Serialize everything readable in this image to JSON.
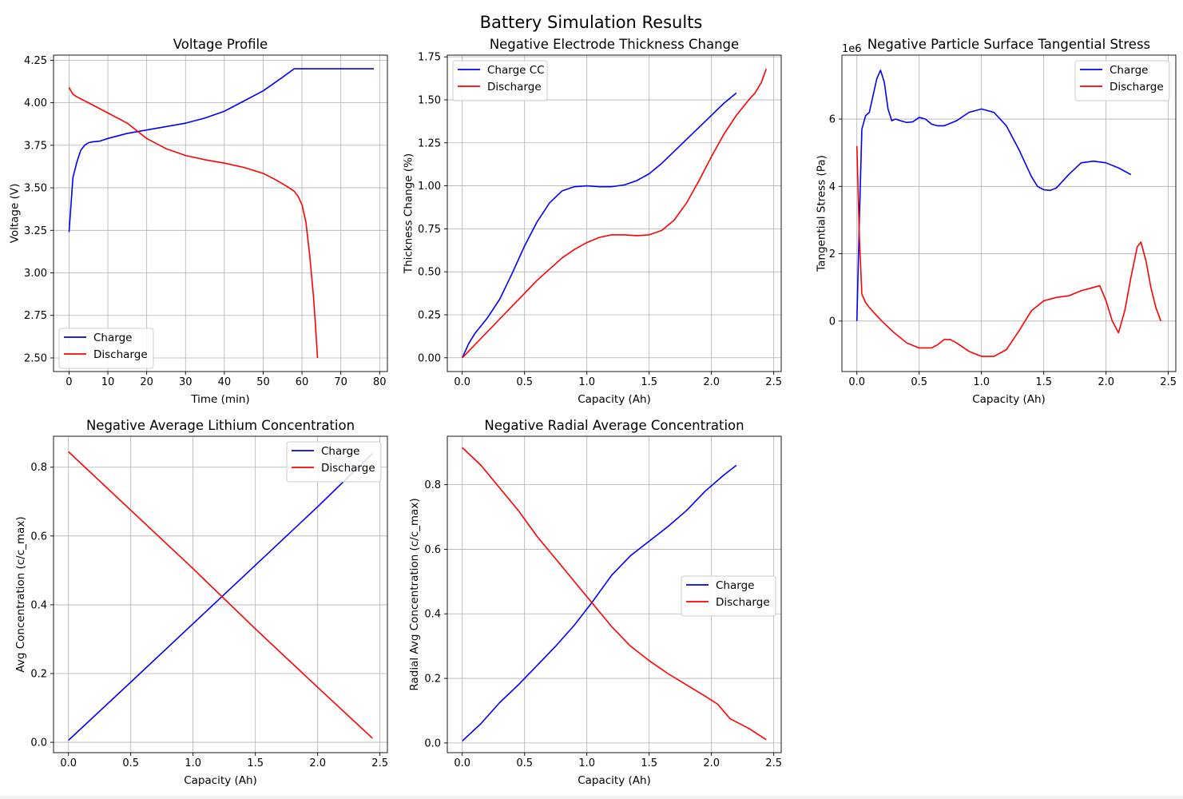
{
  "suptitle": "Battery Simulation Results",
  "colors": {
    "charge": "#0000ff",
    "discharge": "#ff0000",
    "grid": "#b0b0b0",
    "axis": "#000000"
  },
  "chart_data": [
    {
      "type": "line",
      "title": "Voltage Profile",
      "xlabel": "Time (min)",
      "ylabel": "Voltage (V)",
      "xlim": [
        -4,
        82
      ],
      "ylim": [
        2.42,
        4.28
      ],
      "xticks": [
        0,
        10,
        20,
        30,
        40,
        50,
        60,
        70,
        80
      ],
      "xtick_labels": [
        "0",
        "10",
        "20",
        "30",
        "40",
        "50",
        "60",
        "70",
        "80"
      ],
      "yticks": [
        2.5,
        2.75,
        3.0,
        3.25,
        3.5,
        3.75,
        4.0,
        4.25
      ],
      "ytick_labels": [
        "2.50",
        "2.75",
        "3.00",
        "3.25",
        "3.50",
        "3.75",
        "4.00",
        "4.25"
      ],
      "grid": true,
      "legend": "lower-left",
      "series": [
        {
          "name": "Charge",
          "color": "#0000ff",
          "x": [
            0,
            1,
            2,
            3,
            4,
            5,
            6,
            8,
            10,
            15,
            20,
            25,
            30,
            35,
            40,
            45,
            50,
            55,
            58,
            60,
            65,
            70,
            75,
            78.5
          ],
          "y": [
            3.24,
            3.56,
            3.65,
            3.72,
            3.75,
            3.765,
            3.77,
            3.775,
            3.79,
            3.82,
            3.84,
            3.86,
            3.88,
            3.91,
            3.95,
            4.01,
            4.07,
            4.15,
            4.2,
            4.2,
            4.2,
            4.2,
            4.2,
            4.2
          ]
        },
        {
          "name": "Discharge",
          "color": "#ff0000",
          "x": [
            0,
            0.5,
            1,
            2,
            5,
            10,
            15,
            20,
            25,
            30,
            35,
            40,
            45,
            50,
            53,
            56,
            58,
            59,
            60,
            61,
            62,
            63,
            63.5,
            64
          ],
          "y": [
            4.09,
            4.07,
            4.05,
            4.035,
            4.0,
            3.94,
            3.88,
            3.79,
            3.73,
            3.69,
            3.665,
            3.645,
            3.62,
            3.585,
            3.55,
            3.51,
            3.48,
            3.45,
            3.4,
            3.3,
            3.1,
            2.85,
            2.68,
            2.5
          ]
        }
      ]
    },
    {
      "type": "line",
      "title": "Negative Electrode Thickness Change",
      "xlabel": "Capacity (Ah)",
      "ylabel": "Thickness Change (%)",
      "xlim": [
        -0.12,
        2.56
      ],
      "ylim": [
        -0.08,
        1.76
      ],
      "xticks": [
        0,
        0.5,
        1.0,
        1.5,
        2.0,
        2.5
      ],
      "xtick_labels": [
        "0.0",
        "0.5",
        "1.0",
        "1.5",
        "2.0",
        "2.5"
      ],
      "yticks": [
        0,
        0.25,
        0.5,
        0.75,
        1.0,
        1.25,
        1.5,
        1.75
      ],
      "ytick_labels": [
        "0.00",
        "0.25",
        "0.50",
        "0.75",
        "1.00",
        "1.25",
        "1.50",
        "1.75"
      ],
      "grid": true,
      "legend": "upper-left",
      "series": [
        {
          "name": "Charge CC",
          "color": "#0000ff",
          "x": [
            0,
            0.05,
            0.1,
            0.2,
            0.3,
            0.4,
            0.5,
            0.6,
            0.7,
            0.8,
            0.9,
            1.0,
            1.1,
            1.2,
            1.3,
            1.4,
            1.5,
            1.6,
            1.7,
            1.8,
            1.9,
            2.0,
            2.1,
            2.2
          ],
          "y": [
            0,
            0.08,
            0.14,
            0.23,
            0.34,
            0.49,
            0.65,
            0.79,
            0.9,
            0.97,
            0.995,
            1.0,
            0.995,
            0.995,
            1.005,
            1.03,
            1.07,
            1.13,
            1.2,
            1.27,
            1.34,
            1.41,
            1.48,
            1.54
          ]
        },
        {
          "name": "Discharge",
          "color": "#ff0000",
          "x": [
            0,
            0.2,
            0.4,
            0.6,
            0.8,
            0.9,
            1.0,
            1.1,
            1.2,
            1.3,
            1.4,
            1.5,
            1.6,
            1.7,
            1.8,
            1.9,
            2.0,
            2.1,
            2.2,
            2.3,
            2.35,
            2.4,
            2.44
          ],
          "y": [
            0,
            0.15,
            0.3,
            0.45,
            0.58,
            0.63,
            0.67,
            0.7,
            0.715,
            0.715,
            0.71,
            0.715,
            0.74,
            0.8,
            0.9,
            1.03,
            1.17,
            1.3,
            1.41,
            1.5,
            1.54,
            1.6,
            1.68
          ]
        }
      ]
    },
    {
      "type": "line",
      "title": "Negative Particle Surface Tangential Stress",
      "xlabel": "Capacity (Ah)",
      "ylabel": "Tangential Stress (Pa)",
      "offset_label": "1e6",
      "xlim": [
        -0.12,
        2.56
      ],
      "ylim": [
        -1.5,
        7.9
      ],
      "xticks": [
        0,
        0.5,
        1.0,
        1.5,
        2.0,
        2.5
      ],
      "xtick_labels": [
        "0.0",
        "0.5",
        "1.0",
        "1.5",
        "2.0",
        "2.5"
      ],
      "yticks": [
        0,
        2,
        4,
        6
      ],
      "ytick_labels": [
        "0",
        "2",
        "4",
        "6"
      ],
      "grid": true,
      "legend": "upper-right",
      "series": [
        {
          "name": "Charge",
          "color": "#0000ff",
          "x": [
            0,
            0.02,
            0.04,
            0.07,
            0.1,
            0.13,
            0.16,
            0.19,
            0.22,
            0.25,
            0.28,
            0.31,
            0.35,
            0.4,
            0.45,
            0.5,
            0.55,
            0.6,
            0.65,
            0.7,
            0.8,
            0.9,
            1.0,
            1.1,
            1.2,
            1.3,
            1.4,
            1.45,
            1.5,
            1.55,
            1.6,
            1.7,
            1.8,
            1.9,
            2.0,
            2.1,
            2.2
          ],
          "y": [
            0,
            3.0,
            5.7,
            6.1,
            6.2,
            6.7,
            7.2,
            7.45,
            7.1,
            6.3,
            5.95,
            6.0,
            5.95,
            5.9,
            5.92,
            6.05,
            6.0,
            5.85,
            5.8,
            5.8,
            5.95,
            6.2,
            6.3,
            6.2,
            5.8,
            5.1,
            4.3,
            4.0,
            3.9,
            3.88,
            3.95,
            4.35,
            4.7,
            4.75,
            4.7,
            4.55,
            4.35
          ]
        },
        {
          "name": "Discharge",
          "color": "#ff0000",
          "x": [
            0,
            0.02,
            0.04,
            0.07,
            0.1,
            0.2,
            0.3,
            0.4,
            0.5,
            0.6,
            0.65,
            0.7,
            0.75,
            0.8,
            0.9,
            1.0,
            1.1,
            1.2,
            1.3,
            1.4,
            1.5,
            1.6,
            1.7,
            1.8,
            1.9,
            1.95,
            2.0,
            2.05,
            2.1,
            2.15,
            2.2,
            2.25,
            2.28,
            2.32,
            2.36,
            2.4,
            2.44
          ],
          "y": [
            5.2,
            2.5,
            0.8,
            0.55,
            0.4,
            0.0,
            -0.35,
            -0.65,
            -0.8,
            -0.8,
            -0.7,
            -0.55,
            -0.55,
            -0.65,
            -0.9,
            -1.05,
            -1.05,
            -0.85,
            -0.3,
            0.3,
            0.6,
            0.7,
            0.75,
            0.9,
            1.0,
            1.05,
            0.6,
            0.0,
            -0.35,
            0.3,
            1.3,
            2.2,
            2.35,
            1.8,
            1.0,
            0.4,
            0.0
          ]
        }
      ]
    },
    {
      "type": "line",
      "title": "Negative Average Lithium Concentration",
      "xlabel": "Capacity (Ah)",
      "ylabel": "Avg Concentration (c/c_max)",
      "xlim": [
        -0.12,
        2.56
      ],
      "ylim": [
        -0.03,
        0.89
      ],
      "xticks": [
        0,
        0.5,
        1.0,
        1.5,
        2.0,
        2.5
      ],
      "xtick_labels": [
        "0.0",
        "0.5",
        "1.0",
        "1.5",
        "2.0",
        "2.5"
      ],
      "yticks": [
        0,
        0.2,
        0.4,
        0.6,
        0.8
      ],
      "ytick_labels": [
        "0.0",
        "0.2",
        "0.4",
        "0.6",
        "0.8"
      ],
      "grid": true,
      "legend": "upper-right",
      "series": [
        {
          "name": "Charge",
          "color": "#0000ff",
          "x": [
            0,
            0.5,
            1.0,
            1.5,
            2.0,
            2.44
          ],
          "y": [
            0.006,
            0.175,
            0.345,
            0.515,
            0.685,
            0.84
          ]
        },
        {
          "name": "Discharge",
          "color": "#ff0000",
          "x": [
            0,
            0.5,
            1.0,
            1.5,
            2.0,
            2.44
          ],
          "y": [
            0.845,
            0.675,
            0.505,
            0.33,
            0.16,
            0.012
          ]
        }
      ]
    },
    {
      "type": "line",
      "title": "Negative Radial Average Concentration",
      "xlabel": "Capacity (Ah)",
      "ylabel": "Radial Avg Concentration (c/c_max)",
      "xlim": [
        -0.12,
        2.56
      ],
      "ylim": [
        -0.03,
        0.95
      ],
      "xticks": [
        0,
        0.5,
        1.0,
        1.5,
        2.0,
        2.5
      ],
      "xtick_labels": [
        "0.0",
        "0.5",
        "1.0",
        "1.5",
        "2.0",
        "2.5"
      ],
      "yticks": [
        0,
        0.2,
        0.4,
        0.6,
        0.8
      ],
      "ytick_labels": [
        "0.0",
        "0.2",
        "0.4",
        "0.6",
        "0.8"
      ],
      "grid": true,
      "legend": "center-right",
      "series": [
        {
          "name": "Charge",
          "color": "#0000ff",
          "x": [
            0,
            0.15,
            0.3,
            0.45,
            0.6,
            0.75,
            0.9,
            1.05,
            1.2,
            1.35,
            1.5,
            1.65,
            1.8,
            1.95,
            2.1,
            2.2
          ],
          "y": [
            0.006,
            0.06,
            0.125,
            0.18,
            0.24,
            0.3,
            0.365,
            0.44,
            0.52,
            0.58,
            0.625,
            0.67,
            0.72,
            0.78,
            0.83,
            0.86
          ]
        },
        {
          "name": "Discharge",
          "color": "#ff0000",
          "x": [
            0,
            0.15,
            0.3,
            0.45,
            0.6,
            0.75,
            0.9,
            1.05,
            1.2,
            1.35,
            1.5,
            1.65,
            1.8,
            1.95,
            2.05,
            2.15,
            2.3,
            2.44
          ],
          "y": [
            0.915,
            0.86,
            0.79,
            0.72,
            0.64,
            0.57,
            0.5,
            0.43,
            0.36,
            0.3,
            0.255,
            0.215,
            0.18,
            0.145,
            0.12,
            0.075,
            0.045,
            0.01
          ]
        }
      ]
    }
  ]
}
